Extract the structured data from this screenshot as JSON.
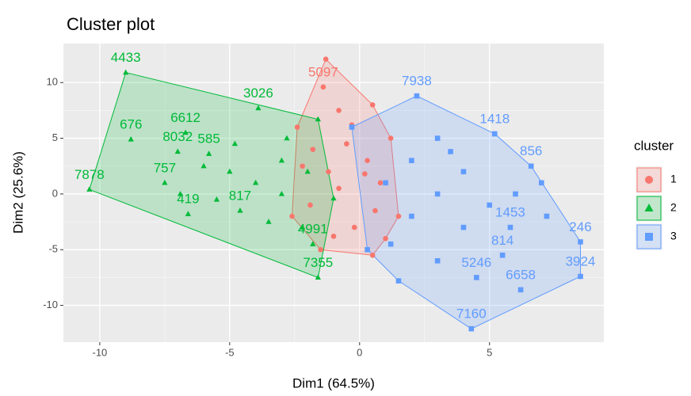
{
  "chart_data": {
    "type": "scatter",
    "title": "Cluster plot",
    "x_label": "Dim1 (64.5%)",
    "y_label": "Dim2 (25.6%)",
    "xlim": [
      -11.4,
      9.4
    ],
    "ylim": [
      -13.3,
      13.5
    ],
    "xticks": [
      -10,
      -5,
      0,
      5
    ],
    "yticks": [
      -10,
      -5,
      0,
      5,
      10
    ],
    "grid": true,
    "legend_title": "cluster",
    "legend": "right",
    "series": [
      {
        "name": "1",
        "color": "#F8766D",
        "shape": "circle",
        "x": [
          -1.3,
          -1.4,
          -0.8,
          -2.4,
          0.5,
          1.2,
          -1.8,
          -0.5,
          0.3,
          -1.2,
          -2.6,
          -0.8,
          0.8,
          1.5,
          -1.5,
          0.5,
          -0.2,
          -1.9,
          0.6,
          -2.2,
          -0.3,
          1,
          -1,
          0.2
        ],
        "y": [
          12.1,
          9.6,
          7.5,
          6,
          8,
          5,
          4,
          4.5,
          3,
          2,
          -2,
          0.5,
          1,
          -2,
          -5,
          -5.5,
          -3,
          -1,
          -1.5,
          2.5,
          6.2,
          -4,
          -3.8,
          1.8
        ],
        "labels": [
          null,
          "5097",
          null,
          null,
          null,
          null,
          null,
          null,
          null,
          null,
          null,
          null,
          null,
          null,
          null,
          null,
          null,
          null,
          null,
          null,
          null,
          null,
          null,
          null
        ]
      },
      {
        "name": "2",
        "color": "#00BA38",
        "shape": "triangle",
        "x": [
          -9,
          -10.4,
          -8.8,
          -6.7,
          -1.6,
          -3.9,
          -1.6,
          -1.0,
          -7.5,
          -5.8,
          -4.6,
          -6.9,
          -5,
          -4,
          -3,
          -3,
          -2,
          -2.2,
          -5.5,
          -6,
          -4.8,
          -3.5,
          -1.8,
          -2.8,
          -7,
          -6.6
        ],
        "y": [
          10.9,
          0.4,
          4.9,
          5.5,
          -7.5,
          7.7,
          6.7,
          -0.4,
          1.0,
          3.6,
          -1.5,
          0,
          2,
          1,
          0,
          3,
          2,
          -3,
          -0.5,
          2.5,
          4.5,
          -2.5,
          -4.5,
          5,
          3.8,
          -1.8
        ],
        "labels": [
          "4433",
          "7878",
          "676",
          "6612",
          "7355",
          "3026",
          null,
          null,
          "757",
          "585",
          "817",
          null,
          null,
          null,
          null,
          null,
          null,
          null,
          null,
          null,
          null,
          null,
          "4991",
          null,
          "8032",
          "419"
        ]
      },
      {
        "name": "3",
        "color": "#619CFF",
        "shape": "square",
        "x": [
          2.2,
          -0.3,
          0.3,
          1.5,
          4.3,
          8.5,
          8.5,
          6.2,
          5.8,
          5.5,
          5.2,
          6.6,
          3,
          2,
          4,
          6,
          3,
          1,
          2,
          4,
          3,
          5,
          7,
          1.2,
          4.5,
          7.2,
          3.5
        ],
        "y": [
          8.8,
          6,
          -5,
          -7.8,
          -12.1,
          -7.4,
          -4.3,
          -8.6,
          -3,
          -5.5,
          5.4,
          2.5,
          5,
          3,
          2,
          0,
          0,
          1,
          -2,
          -3,
          -6,
          -1,
          1,
          -4.5,
          -7.5,
          -2,
          3.8
        ],
        "labels": [
          "7938",
          null,
          null,
          null,
          "7160",
          "3924",
          "246",
          "6658",
          "1453",
          "814",
          "1418",
          "856",
          null,
          null,
          null,
          null,
          null,
          null,
          null,
          null,
          null,
          null,
          null,
          null,
          "5246",
          null,
          null
        ]
      }
    ]
  }
}
